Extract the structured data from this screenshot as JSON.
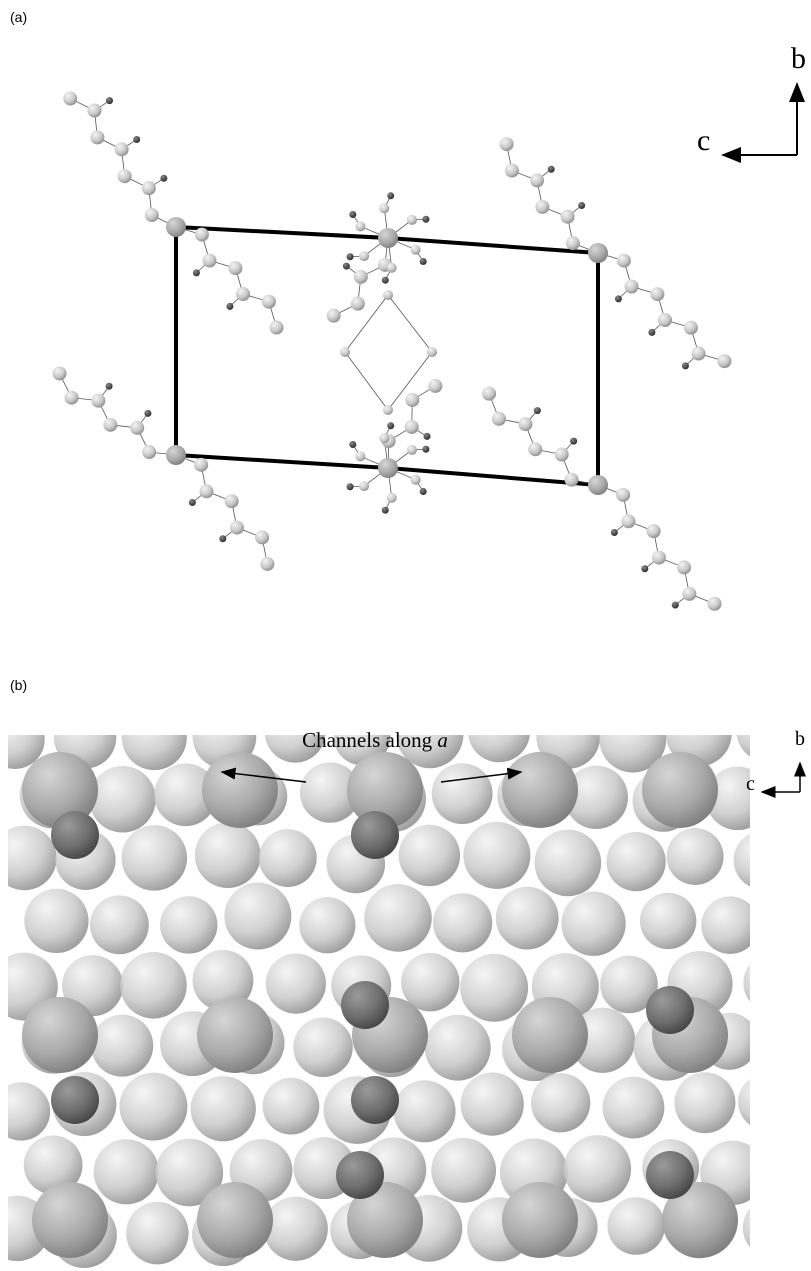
{
  "panel_a": {
    "label": "(a)",
    "axis_b": "b",
    "axis_c": "c"
  },
  "panel_b": {
    "label": "(b)",
    "annotation": "Channels along",
    "annotation_italic": "a",
    "axis_b": "b",
    "axis_c": "c"
  }
}
